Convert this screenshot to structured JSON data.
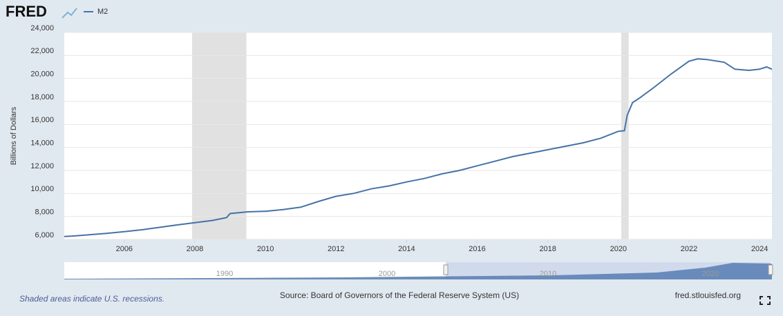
{
  "page": {
    "logo": "FRED",
    "footer_left": "Shaded areas indicate U.S. recessions.",
    "source": "Source: Board of Governors of the Federal Reserve System (US)",
    "site": "fred.stlouisfed.org",
    "navigator_labels": [
      "1990",
      "2000",
      "2010",
      "2020"
    ]
  },
  "chart_data": {
    "type": "line",
    "ylabel": "Billions of Dollars",
    "x": [
      2004.3,
      2004.5,
      2005.0,
      2005.5,
      2006.0,
      2006.5,
      2007.0,
      2007.5,
      2008.0,
      2008.5,
      2008.9,
      2009.0,
      2009.5,
      2010.0,
      2010.5,
      2011.0,
      2011.5,
      2012.0,
      2012.5,
      2013.0,
      2013.5,
      2014.0,
      2014.5,
      2015.0,
      2015.5,
      2016.0,
      2016.5,
      2017.0,
      2017.5,
      2018.0,
      2018.5,
      2019.0,
      2019.5,
      2020.0,
      2020.17,
      2020.25,
      2020.4,
      2020.6,
      2021.0,
      2021.5,
      2022.0,
      2022.25,
      2022.5,
      2023.0,
      2023.3,
      2023.7,
      2024.0,
      2024.2,
      2024.35
    ],
    "series": [
      {
        "name": "M2",
        "color": "#4572a7",
        "values": [
          6250,
          6280,
          6400,
          6530,
          6680,
          6840,
          7050,
          7260,
          7450,
          7650,
          7900,
          8250,
          8400,
          8450,
          8600,
          8800,
          9300,
          9750,
          10000,
          10400,
          10650,
          11000,
          11300,
          11700,
          12000,
          12400,
          12800,
          13200,
          13500,
          13800,
          14100,
          14400,
          14800,
          15400,
          15450,
          16800,
          17900,
          18300,
          19200,
          20400,
          21500,
          21700,
          21650,
          21400,
          20800,
          20700,
          20800,
          21000,
          20800
        ]
      }
    ],
    "recessions": [
      [
        2007.92,
        2009.46
      ],
      [
        2020.08,
        2020.29
      ]
    ],
    "xlim": [
      2004.3,
      2024.35
    ],
    "xticks": [
      2006,
      2008,
      2010,
      2012,
      2014,
      2016,
      2018,
      2020,
      2022,
      2024
    ],
    "ylim": [
      6000,
      24000
    ],
    "yticks": [
      {
        "value": 6000,
        "label": "6,000"
      },
      {
        "value": 8000,
        "label": "8,000"
      },
      {
        "value": 10000,
        "label": "10,000"
      },
      {
        "value": 12000,
        "label": "12,000"
      },
      {
        "value": 14000,
        "label": "14,000"
      },
      {
        "value": 16000,
        "label": "16,000"
      },
      {
        "value": 18000,
        "label": "18,000"
      },
      {
        "value": 20000,
        "label": "20,000"
      },
      {
        "value": 22000,
        "label": "22,000"
      },
      {
        "value": 24000,
        "label": "24,000"
      }
    ],
    "grid": true
  }
}
